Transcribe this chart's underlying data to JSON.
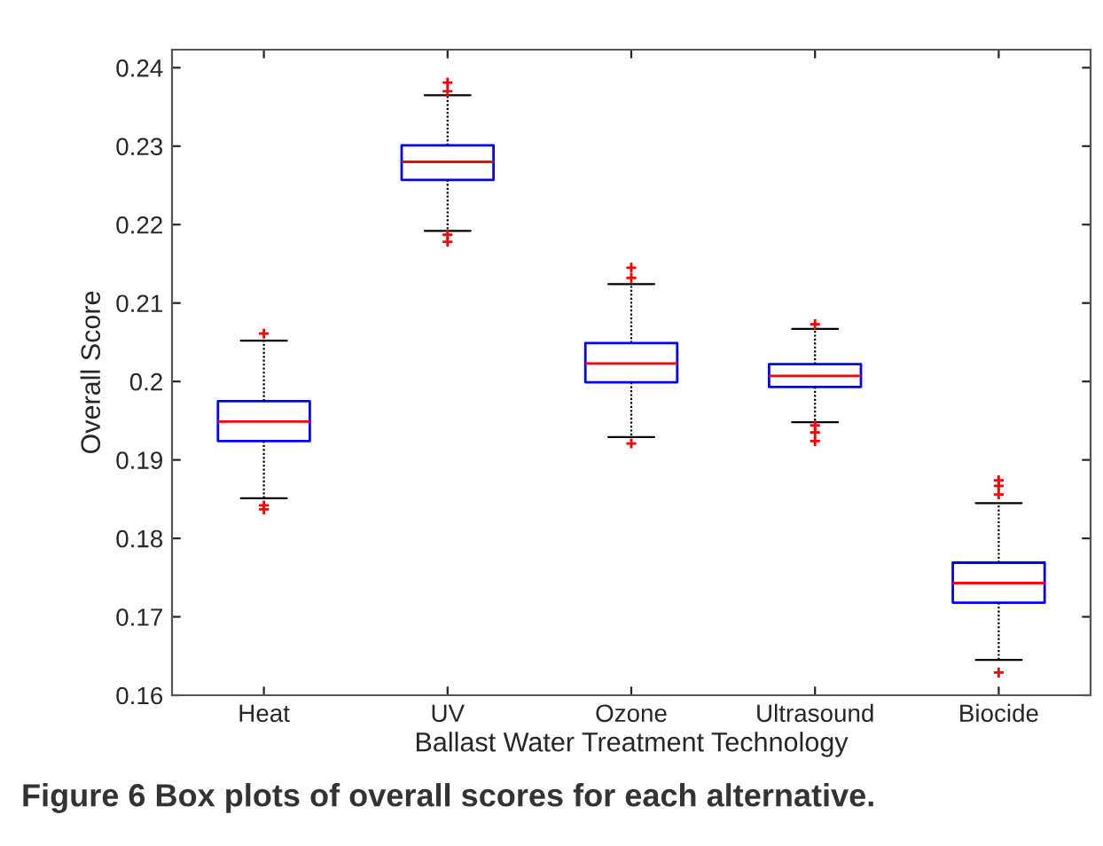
{
  "chart_data": {
    "type": "box",
    "xlabel": "Ballast Water Treatment Technology",
    "ylabel": "Overall Score",
    "categories": [
      "Heat",
      "UV",
      "Ozone",
      "Ultrasound",
      "Biocide"
    ],
    "boxes": [
      {
        "low": 0.1851,
        "q1": 0.1924,
        "median": 0.1949,
        "q3": 0.1975,
        "high": 0.2052,
        "outliers": [
          0.2061,
          0.1842,
          0.1837
        ]
      },
      {
        "low": 0.2192,
        "q1": 0.2257,
        "median": 0.228,
        "q3": 0.2301,
        "high": 0.2365,
        "outliers": [
          0.2381,
          0.237,
          0.2187,
          0.2178
        ]
      },
      {
        "low": 0.1929,
        "q1": 0.1999,
        "median": 0.2023,
        "q3": 0.2049,
        "high": 0.2124,
        "outliers": [
          0.2145,
          0.2132,
          0.1921
        ]
      },
      {
        "low": 0.1948,
        "q1": 0.1993,
        "median": 0.2007,
        "q3": 0.2022,
        "high": 0.2067,
        "outliers": [
          0.2073,
          0.1944,
          0.1935,
          0.1924
        ]
      },
      {
        "low": 0.1645,
        "q1": 0.1718,
        "median": 0.1743,
        "q3": 0.1769,
        "high": 0.1845,
        "outliers": [
          0.1874,
          0.1867,
          0.1856,
          0.1629
        ]
      }
    ],
    "color": "#0000ff",
    "ylim": [
      0.16,
      0.2423
    ],
    "yticks": [
      0.16,
      0.17,
      0.18,
      0.19,
      0.2,
      0.21,
      0.22,
      0.23,
      0.24
    ],
    "grid": false,
    "annotations": [
      "Figure 6 Box plots of overall scores for each alternative."
    ]
  }
}
